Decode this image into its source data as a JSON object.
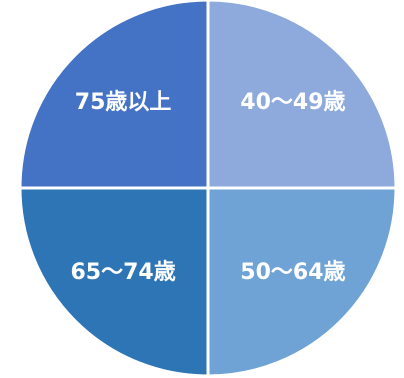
{
  "chart_data": {
    "type": "pie",
    "title": "",
    "start": "top, clockwise",
    "slices": [
      {
        "label": "40～49歳",
        "value": 25,
        "color": "#8EA9DB"
      },
      {
        "label": "50～64歳",
        "value": 25,
        "color": "#6FA3D6"
      },
      {
        "label": "65～74歳",
        "value": 25,
        "color": "#2E75B6"
      },
      {
        "label": "75歳以上",
        "value": 25,
        "color": "#4472C4"
      }
    ],
    "legend": "none",
    "separator_color": "#ffffff"
  }
}
